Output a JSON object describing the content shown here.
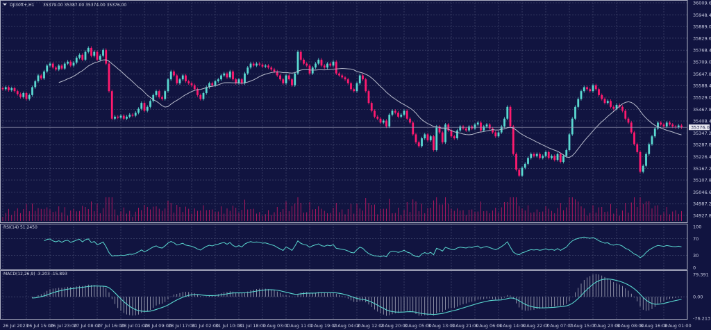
{
  "header": {
    "symbol": "DJI30ft+,H1",
    "ohlc": "35379.00 35387.00 35374.00 35376.00"
  },
  "colors": {
    "background": "#111440",
    "bull": "#5ad8d0",
    "bear": "#ff1a6e",
    "grid": "#4e5378",
    "ma": "#b8bccc",
    "rsi": "#5ad8d0",
    "macd_signal": "#5ad8d0",
    "macd_hist": "#c0c3d0",
    "volume": "#ff1a6e"
  },
  "chart_data": [
    {
      "type": "candlestick",
      "title": "DJI30ft+,H1",
      "ylim": [
        34927.8,
        36009.6
      ],
      "grid": true,
      "current_price": "35376.00",
      "y_ticks": [
        "36009.60",
        "35948.40",
        "35889.00",
        "35829.60",
        "35768.40",
        "35709.00",
        "35647.80",
        "35588.40",
        "35529.00",
        "35467.80",
        "35408.40",
        "35347.20",
        "35287.80",
        "35226.40",
        "35167.20",
        "35107.80",
        "35046.60",
        "34987.20",
        "34927.80"
      ],
      "x_ticks": [
        "26 Jul 2023",
        "26 Jul 15:00",
        "26 Jul 23:00",
        "27 Jul 08:00",
        "27 Jul 16:00",
        "28 Jul 01:00",
        "28 Jul 09:00",
        "28 Jul 17:00",
        "31 Jul 02:00",
        "31 Jul 10:00",
        "31 Jul 18:00",
        "1 Aug 03:00",
        "1 Aug 11:00",
        "1 Aug 19:00",
        "2 Aug 04:00",
        "2 Aug 12:00",
        "2 Aug 20:00",
        "3 Aug 05:00",
        "3 Aug 13:00",
        "3 Aug 21:00",
        "4 Aug 06:00",
        "4 Aug 14:00",
        "4 Aug 22:00",
        "7 Aug 07:00",
        "7 Aug 15:00",
        "7 Aug 23:00",
        "8 Aug 08:00",
        "8 Aug 16:00",
        "9 Aug 01:00"
      ],
      "moving_average_period": 20,
      "closes": [
        35570,
        35580,
        35565,
        35575,
        35560,
        35545,
        35530,
        35550,
        35520,
        35540,
        35580,
        35610,
        35640,
        35625,
        35660,
        35690,
        35700,
        35680,
        35670,
        35690,
        35675,
        35700,
        35710,
        35690,
        35705,
        35730,
        35745,
        35720,
        35760,
        35780,
        35740,
        35760,
        35720,
        35740,
        35770,
        35700,
        35560,
        35420,
        35430,
        35425,
        35435,
        35420,
        35430,
        35440,
        35435,
        35450,
        35470,
        35500,
        35460,
        35480,
        35510,
        35540,
        35560,
        35530,
        35520,
        35560,
        35620,
        35660,
        35640,
        35600,
        35620,
        35640,
        35610,
        35600,
        35590,
        35570,
        35540,
        35520,
        35550,
        35580,
        35600,
        35590,
        35610,
        35620,
        35640,
        35650,
        35630,
        35660,
        35620,
        35600,
        35620,
        35600,
        35650,
        35680,
        35700,
        35690,
        35700,
        35695,
        35685,
        35690,
        35680,
        35670,
        35660,
        35640,
        35620,
        35600,
        35640,
        35620,
        35590,
        35650,
        35760,
        35720,
        35700,
        35690,
        35650,
        35680,
        35700,
        35720,
        35690,
        35680,
        35700,
        35690,
        35710,
        35650,
        35640,
        35630,
        35620,
        35600,
        35570,
        35560,
        35600,
        35640,
        35620,
        35560,
        35500,
        35460,
        35430,
        35420,
        35400,
        35410,
        35380,
        35440,
        35460,
        35450,
        35430,
        35440,
        35460,
        35420,
        35400,
        35340,
        35300,
        35280,
        35320,
        35340,
        35310,
        35330,
        35260,
        35380,
        35350,
        35300,
        35390,
        35360,
        35330,
        35320,
        35360,
        35380,
        35370,
        35360,
        35380,
        35370,
        35390,
        35400,
        35360,
        35380,
        35390,
        35370,
        35350,
        35330,
        35350,
        35380,
        35420,
        35480,
        35380,
        35240,
        35160,
        35130,
        35170,
        35190,
        35220,
        35240,
        35230,
        35240,
        35220,
        35230,
        35250,
        35220,
        35230,
        35210,
        35240,
        35200,
        35230,
        35260,
        35340,
        35420,
        35480,
        35520,
        35560,
        35580,
        35570,
        35560,
        35590,
        35570,
        35540,
        35520,
        35500,
        35510,
        35480,
        35470,
        35490,
        35480,
        35460,
        35420,
        35400,
        35350,
        35290,
        35250,
        35150,
        35180,
        35240,
        35290,
        35330,
        35370,
        35400,
        35390,
        35380,
        35400,
        35390,
        35380,
        35376,
        35385,
        35376
      ]
    },
    {
      "type": "line",
      "title": "RSI(14) 51.2450",
      "ylim": [
        0,
        100
      ],
      "y_ticks": [
        "100",
        "70",
        "30",
        "0"
      ],
      "period": 14
    },
    {
      "type": "bar",
      "title": "MACD(12,26,9) -3.203 -15.893",
      "ylim": [
        -76.213,
        79.391
      ],
      "y_ticks": [
        "79.391",
        "0.00",
        "-76.213"
      ],
      "fast": 12,
      "slow": 26,
      "signal": 9
    }
  ]
}
